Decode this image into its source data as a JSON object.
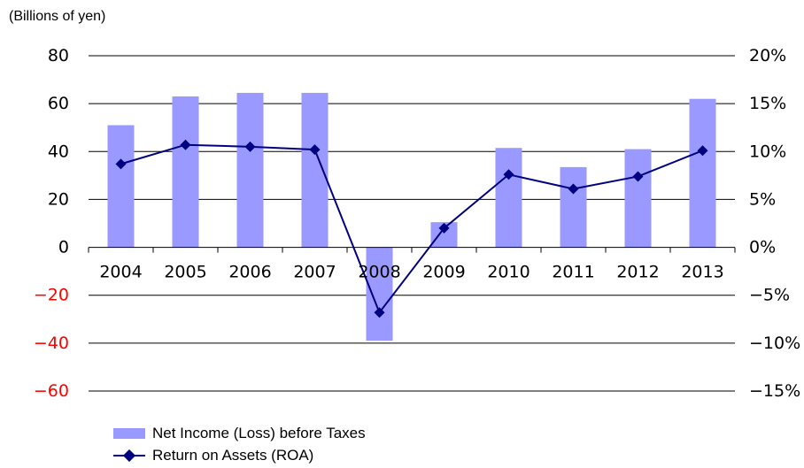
{
  "unit_label": "(Billions of yen)",
  "colors": {
    "bar": "#9999ff",
    "line": "#000080",
    "negative_tick": "#ff0000",
    "axis": "#000000"
  },
  "chart_data": {
    "type": "bar",
    "categories": [
      "2004",
      "2005",
      "2006",
      "2007",
      "2008",
      "2009",
      "2010",
      "2011",
      "2012",
      "2013"
    ],
    "series": [
      {
        "name": "Net Income (Loss) before Taxes",
        "type": "bar",
        "axis": "left",
        "values": [
          51,
          63,
          64.5,
          64.5,
          -39,
          10.5,
          41.5,
          33.5,
          41,
          62
        ]
      },
      {
        "name": "Return on Assets (ROA)",
        "type": "line",
        "axis": "right",
        "marker": "diamond",
        "values": [
          8.7,
          10.7,
          10.5,
          10.2,
          -6.8,
          2.0,
          7.6,
          6.1,
          7.4,
          10.1
        ]
      }
    ],
    "y_left": {
      "ylim": [
        -60,
        80
      ],
      "ticks": [
        "80",
        "60",
        "40",
        "20",
        "0",
        "−20",
        "−40",
        "−60"
      ]
    },
    "y_right": {
      "ylim": [
        -15,
        20
      ],
      "ticks": [
        "20%",
        "15%",
        "10%",
        "5%",
        "0%",
        "−5%",
        "−10%",
        "−15%"
      ]
    },
    "grid": true,
    "legend": "bottom-left"
  }
}
